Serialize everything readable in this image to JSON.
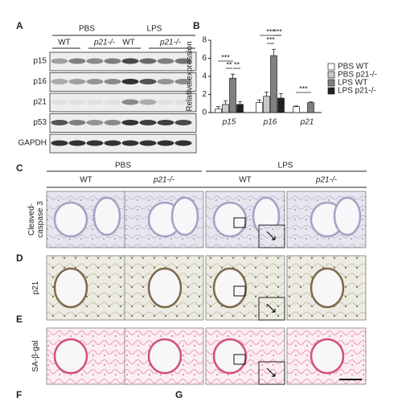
{
  "panels": {
    "A": "A",
    "B": "B",
    "C": "C",
    "D": "D",
    "E": "E",
    "F": "F",
    "G": "G",
    "blot": {
      "groups": [
        "PBS",
        "LPS"
      ],
      "genotypes": [
        "WT",
        "p21-/-",
        "WT",
        "p21-/-"
      ],
      "rows": [
        "p15",
        "p16",
        "p21",
        "p53",
        "GAPDH"
      ]
    },
    "histology": {
      "groups": [
        "PBS",
        "LPS"
      ],
      "genotypes": [
        "WT",
        "p21-/-",
        "WT",
        "p21-/-"
      ],
      "rows": [
        "Cleaved-\ncaspase 3",
        "p21",
        "SA-β-gal"
      ]
    }
  },
  "chart_data": {
    "type": "bar",
    "y_label": "Relative expression",
    "categories": [
      "p15",
      "p16",
      "p21"
    ],
    "series": [
      {
        "name": "PBS WT",
        "color": "#ffffff",
        "values": [
          0.4,
          1.1,
          0.65
        ],
        "errors": [
          0.25,
          0.3,
          0.08
        ]
      },
      {
        "name": "PBS p21-/-",
        "color": "#c8c8c8",
        "values": [
          0.9,
          1.8,
          0
        ],
        "errors": [
          0.4,
          0.45,
          0
        ]
      },
      {
        "name": "LPS WT",
        "color": "#808080",
        "values": [
          3.8,
          6.3,
          1.1
        ],
        "errors": [
          0.45,
          0.7,
          0.08
        ]
      },
      {
        "name": "LPS p21-/-",
        "color": "#222222",
        "values": [
          0.9,
          1.6,
          0
        ],
        "errors": [
          0.3,
          0.5,
          0
        ]
      }
    ],
    "ylim": [
      0,
      8
    ],
    "yticks": [
      0,
      2,
      4,
      6,
      8
    ],
    "annotations": [
      "***",
      "**",
      "**",
      "***",
      "***",
      "***",
      "***"
    ]
  }
}
